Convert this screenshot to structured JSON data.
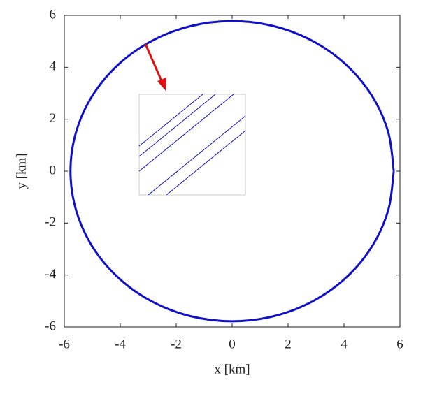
{
  "chart_data": {
    "type": "line",
    "xlabel": "x [km]",
    "ylabel": "y [km]",
    "xlim": [
      -6,
      6
    ],
    "ylim": [
      -6,
      6
    ],
    "xticks": [
      -6,
      -4,
      -2,
      0,
      2,
      4,
      6
    ],
    "yticks": [
      -6,
      -4,
      -2,
      0,
      2,
      4,
      6
    ],
    "series": [
      {
        "color": "#1010c8",
        "x": [
          5.78,
          5.583,
          5.006,
          4.087,
          2.89,
          1.496,
          0,
          -1.496,
          -2.89,
          -4.087,
          -5.006,
          -5.583,
          -5.78,
          -5.583,
          -5.006,
          -4.087,
          -2.89,
          -1.496,
          0,
          1.496,
          2.89,
          4.087,
          5.006,
          5.583,
          5.78
        ],
        "values": [
          0,
          1.496,
          2.89,
          4.087,
          5.006,
          5.583,
          5.78,
          5.583,
          5.006,
          4.087,
          2.89,
          1.496,
          0,
          -1.496,
          -2.89,
          -4.087,
          -5.006,
          -5.583,
          -5.78,
          -5.583,
          -5.006,
          -4.087,
          -2.89,
          -1.496,
          0
        ]
      }
    ]
  }
}
